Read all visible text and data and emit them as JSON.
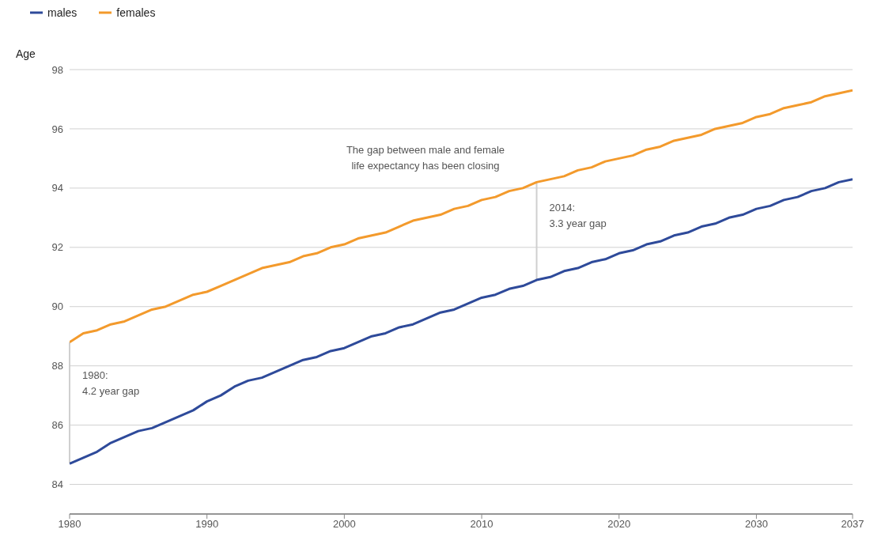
{
  "chart_data": {
    "type": "line",
    "ylabel": "Age",
    "x": [
      1980,
      1981,
      1982,
      1983,
      1984,
      1985,
      1986,
      1987,
      1988,
      1989,
      1990,
      1991,
      1992,
      1993,
      1994,
      1995,
      1996,
      1997,
      1998,
      1999,
      2000,
      2001,
      2002,
      2003,
      2004,
      2005,
      2006,
      2007,
      2008,
      2009,
      2010,
      2011,
      2012,
      2013,
      2014,
      2015,
      2016,
      2017,
      2018,
      2019,
      2020,
      2021,
      2022,
      2023,
      2024,
      2025,
      2026,
      2027,
      2028,
      2029,
      2030,
      2031,
      2032,
      2033,
      2034,
      2035,
      2036,
      2037
    ],
    "series": [
      {
        "name": "males",
        "color": "#2e4a9a",
        "values": [
          84.7,
          84.9,
          85.1,
          85.4,
          85.6,
          85.8,
          85.9,
          86.1,
          86.3,
          86.5,
          86.8,
          87.0,
          87.3,
          87.5,
          87.6,
          87.8,
          88.0,
          88.2,
          88.3,
          88.5,
          88.6,
          88.8,
          89.0,
          89.1,
          89.3,
          89.4,
          89.6,
          89.8,
          89.9,
          90.1,
          90.3,
          90.4,
          90.6,
          90.7,
          90.9,
          91.0,
          91.2,
          91.3,
          91.5,
          91.6,
          91.8,
          91.9,
          92.1,
          92.2,
          92.4,
          92.5,
          92.7,
          92.8,
          93.0,
          93.1,
          93.3,
          93.4,
          93.6,
          93.7,
          93.9,
          94.0,
          94.2,
          94.3
        ]
      },
      {
        "name": "females",
        "color": "#f39a2c",
        "values": [
          88.8,
          89.1,
          89.2,
          89.4,
          89.5,
          89.7,
          89.9,
          90.0,
          90.2,
          90.4,
          90.5,
          90.7,
          90.9,
          91.1,
          91.3,
          91.4,
          91.5,
          91.7,
          91.8,
          92.0,
          92.1,
          92.3,
          92.4,
          92.5,
          92.7,
          92.9,
          93.0,
          93.1,
          93.3,
          93.4,
          93.6,
          93.7,
          93.9,
          94.0,
          94.2,
          94.3,
          94.4,
          94.6,
          94.7,
          94.9,
          95.0,
          95.1,
          95.3,
          95.4,
          95.6,
          95.7,
          95.8,
          96.0,
          96.1,
          96.2,
          96.4,
          96.5,
          96.7,
          96.8,
          96.9,
          97.1,
          97.2,
          97.3
        ]
      }
    ],
    "xlim": [
      1980,
      2037
    ],
    "xticks": [
      1980,
      1990,
      2000,
      2010,
      2020,
      2030,
      2037
    ],
    "ylim": [
      83,
      98
    ],
    "yticks": [
      84,
      86,
      88,
      90,
      92,
      94,
      96,
      98
    ],
    "grid": "y",
    "legend": "top left",
    "marker": "none",
    "line_style": "solid",
    "annotations": [
      "The gap between male and female\nlife expectancy has been closing"
    ],
    "ref_lines": [
      {
        "axis": "x",
        "value": 1980,
        "label": "1980:\n4.2 year gap",
        "color": "#cfcfcf"
      },
      {
        "axis": "x",
        "value": 2014,
        "label": "2014:\n3.3 year gap",
        "color": "#cfcfcf"
      }
    ]
  }
}
